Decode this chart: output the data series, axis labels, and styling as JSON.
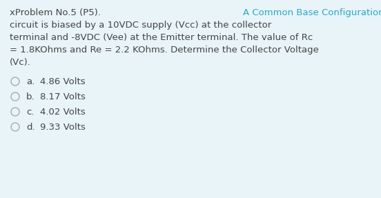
{
  "background_color": "#e8f4f8",
  "body_color": "#444444",
  "highlight_color": "#29a8c5",
  "circle_color": "#aaaaaa",
  "font_size": 9.5,
  "line1_black": "xProblem No.5 (P5). ",
  "line1_blue": "A Common Base Configuration NPN BJT",
  "body_lines": [
    "circuit is biased by a 10VDC supply (Vcc) at the collector",
    "terminal and -8VDC (Vee) at the Emitter terminal. The value of Rc",
    "= 1.8KOhms and Re = 2.2 KOhms. Determine the Collector Voltage",
    "(Vc)."
  ],
  "options": [
    {
      "label": "a.",
      "text": "4.86 Volts"
    },
    {
      "label": "b.",
      "text": "8.17 Volts"
    },
    {
      "label": "c.",
      "text": "4.02 Volts"
    },
    {
      "label": "d.",
      "text": "9.33 Volts"
    }
  ],
  "fig_width": 5.52,
  "fig_height": 2.87,
  "dpi": 100
}
